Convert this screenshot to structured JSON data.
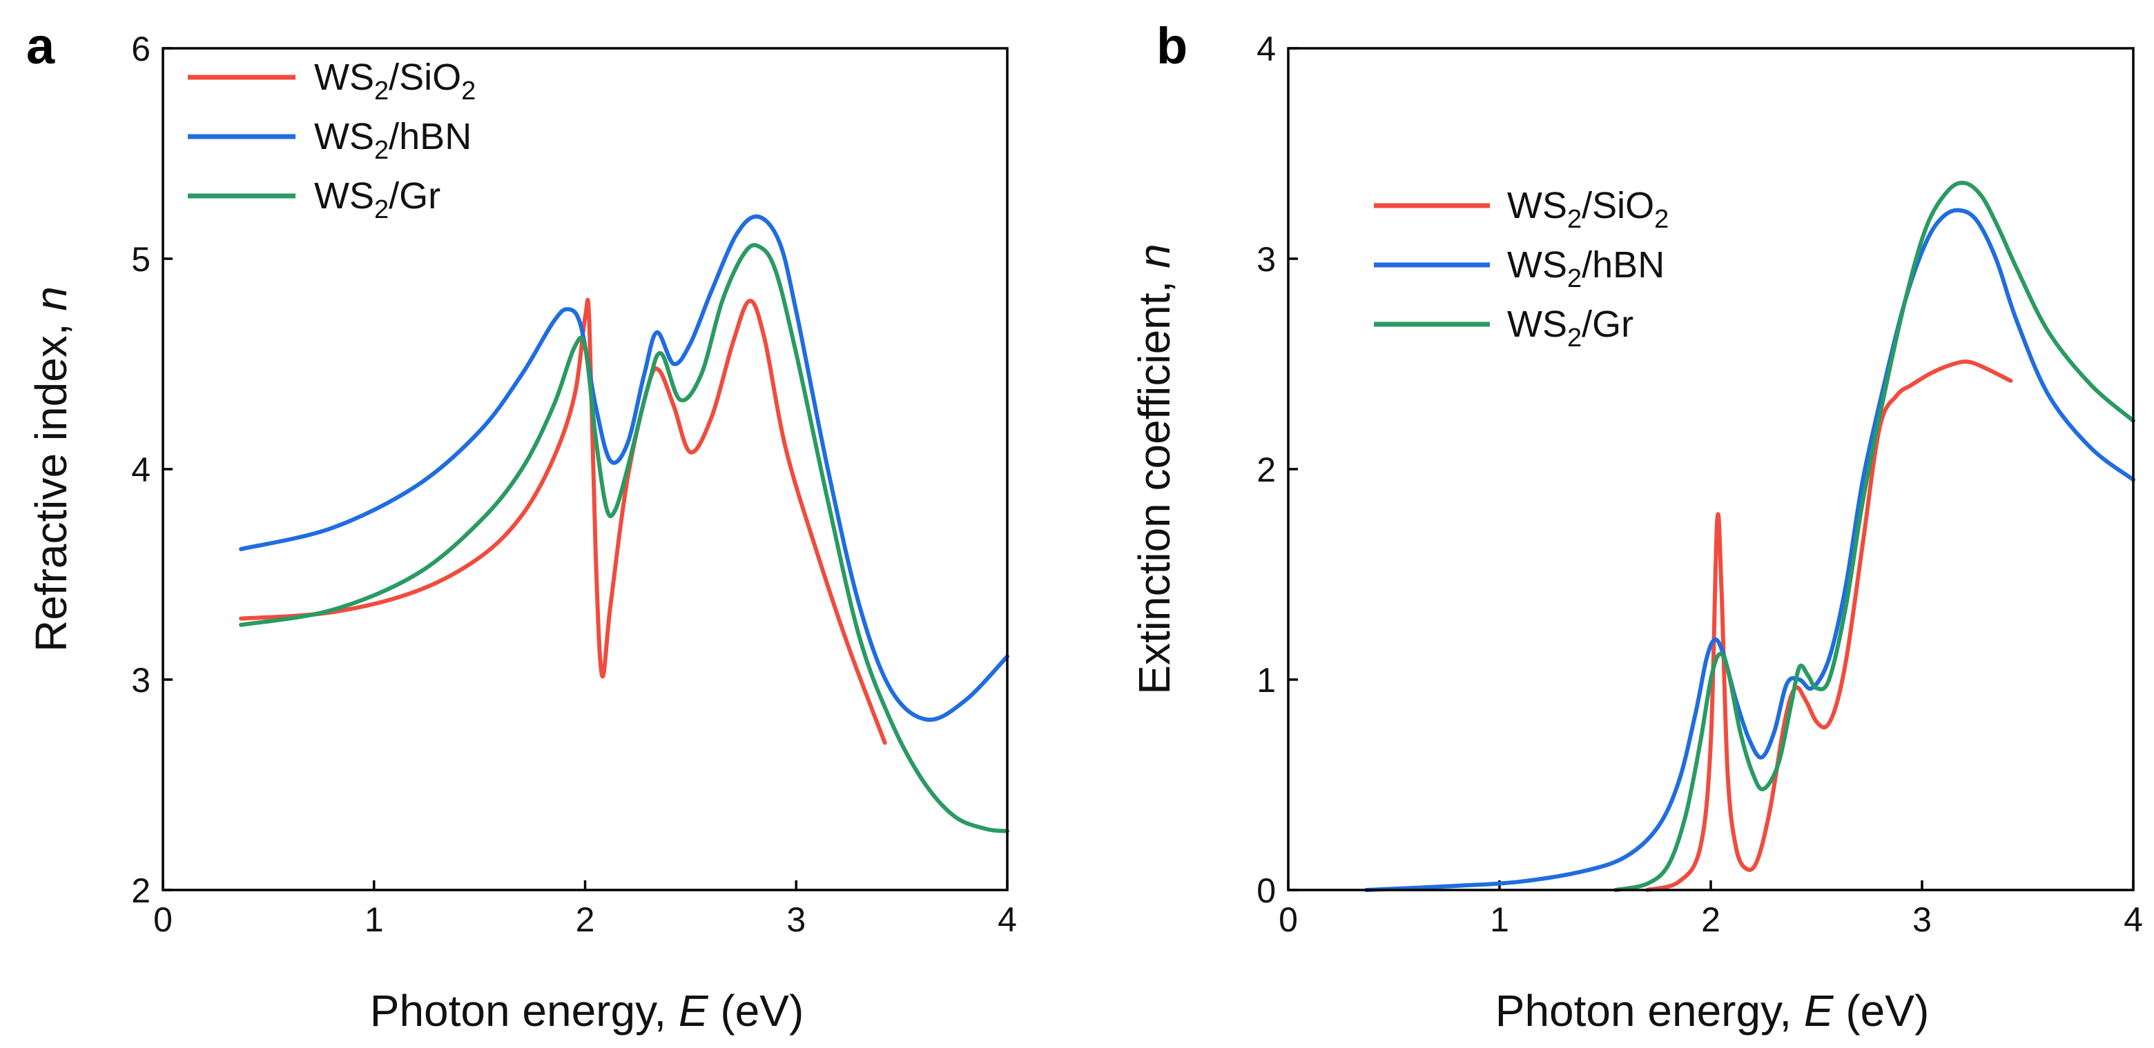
{
  "chart_data": [
    {
      "panel": "a",
      "type": "line",
      "xlabel_prefix": "Photon energy, ",
      "xlabel_var": "E",
      "xlabel_suffix": " (eV)",
      "ylabel_prefix": "Refractive index, ",
      "ylabel_var": "n",
      "xlim": [
        0,
        4
      ],
      "ylim": [
        2,
        6
      ],
      "xticks": [
        "0",
        "1",
        "2",
        "3",
        "4"
      ],
      "yticks": [
        "2",
        "3",
        "4",
        "5",
        "6"
      ],
      "legend_position": "top-left",
      "series": [
        {
          "name_base": "WS",
          "name_sub": "2",
          "name_rest": "/SiO",
          "name_sub2": "2",
          "color": "#f04c3e",
          "x": [
            0.37,
            0.8,
            1.2,
            1.5,
            1.7,
            1.85,
            1.95,
            2.0,
            2.02,
            2.05,
            2.08,
            2.12,
            2.2,
            2.3,
            2.35,
            2.42,
            2.5,
            2.6,
            2.7,
            2.78,
            2.85,
            2.95,
            3.1,
            3.25,
            3.42
          ],
          "y": [
            3.29,
            3.32,
            3.42,
            3.58,
            3.78,
            4.05,
            4.35,
            4.72,
            4.7,
            3.6,
            3.02,
            3.35,
            3.95,
            4.4,
            4.47,
            4.3,
            4.08,
            4.25,
            4.6,
            4.8,
            4.62,
            4.1,
            3.6,
            3.15,
            2.7
          ]
        },
        {
          "name_base": "WS",
          "name_sub": "2",
          "name_rest": "/hBN",
          "name_sub2": "",
          "color": "#1f6de0",
          "x": [
            0.37,
            0.8,
            1.2,
            1.5,
            1.7,
            1.85,
            1.92,
            1.98,
            2.05,
            2.12,
            2.2,
            2.28,
            2.34,
            2.42,
            2.5,
            2.6,
            2.72,
            2.82,
            2.92,
            3.0,
            3.15,
            3.3,
            3.45,
            3.62,
            3.8,
            4.0
          ],
          "y": [
            3.62,
            3.72,
            3.92,
            4.18,
            4.45,
            4.7,
            4.76,
            4.68,
            4.3,
            4.04,
            4.12,
            4.45,
            4.65,
            4.5,
            4.6,
            4.85,
            5.12,
            5.2,
            5.08,
            4.75,
            4.0,
            3.35,
            2.95,
            2.81,
            2.9,
            3.11
          ]
        },
        {
          "name_base": "WS",
          "name_sub": "2",
          "name_rest": "/Gr",
          "name_sub2": "",
          "color": "#2a9a63",
          "x": [
            0.37,
            0.8,
            1.2,
            1.5,
            1.7,
            1.85,
            1.95,
            2.0,
            2.05,
            2.1,
            2.14,
            2.2,
            2.3,
            2.36,
            2.45,
            2.55,
            2.65,
            2.75,
            2.82,
            2.9,
            3.0,
            3.15,
            3.3,
            3.45,
            3.6,
            3.75,
            3.9,
            4.0
          ],
          "y": [
            3.26,
            3.33,
            3.5,
            3.75,
            4.0,
            4.3,
            4.58,
            4.58,
            4.15,
            3.82,
            3.8,
            4.0,
            4.4,
            4.55,
            4.33,
            4.45,
            4.8,
            5.02,
            5.06,
            4.95,
            4.55,
            3.85,
            3.2,
            2.8,
            2.52,
            2.35,
            2.29,
            2.28
          ]
        }
      ]
    },
    {
      "panel": "b",
      "type": "line",
      "xlabel_prefix": "Photon energy, ",
      "xlabel_var": "E",
      "xlabel_suffix": " (eV)",
      "ylabel_prefix": "Extinction coefficient, ",
      "ylabel_var": "n",
      "xlim": [
        0,
        4
      ],
      "ylim": [
        0,
        4
      ],
      "xticks": [
        "0",
        "1",
        "2",
        "3",
        "4"
      ],
      "yticks": [
        "0",
        "1",
        "2",
        "3",
        "4"
      ],
      "legend_position": "upper-left",
      "series": [
        {
          "name_base": "WS",
          "name_sub": "2",
          "name_rest": "/SiO",
          "name_sub2": "2",
          "color": "#f04c3e",
          "x": [
            1.7,
            1.85,
            1.95,
            2.0,
            2.03,
            2.05,
            2.08,
            2.12,
            2.17,
            2.22,
            2.28,
            2.35,
            2.4,
            2.45,
            2.5,
            2.55,
            2.6,
            2.65,
            2.72,
            2.8,
            2.88,
            2.95,
            3.05,
            3.15,
            3.22,
            3.3,
            3.42
          ],
          "y": [
            0.0,
            0.04,
            0.2,
            0.7,
            1.75,
            1.45,
            0.55,
            0.2,
            0.1,
            0.14,
            0.38,
            0.8,
            0.96,
            0.9,
            0.8,
            0.78,
            0.9,
            1.15,
            1.65,
            2.2,
            2.35,
            2.4,
            2.46,
            2.5,
            2.51,
            2.48,
            2.42
          ]
        },
        {
          "name_base": "WS",
          "name_sub": "2",
          "name_rest": "/hBN",
          "name_sub2": "",
          "color": "#1f6de0",
          "x": [
            0.37,
            0.8,
            1.1,
            1.4,
            1.6,
            1.75,
            1.85,
            1.93,
            1.98,
            2.02,
            2.06,
            2.12,
            2.18,
            2.24,
            2.3,
            2.36,
            2.42,
            2.48,
            2.56,
            2.64,
            2.72,
            2.82,
            2.92,
            3.02,
            3.1,
            3.18,
            3.26,
            3.35,
            3.45,
            3.6,
            3.8,
            4.0
          ],
          "y": [
            0.0,
            0.02,
            0.04,
            0.09,
            0.16,
            0.3,
            0.52,
            0.85,
            1.1,
            1.19,
            1.12,
            0.9,
            0.72,
            0.63,
            0.75,
            0.98,
            1.0,
            0.96,
            1.1,
            1.45,
            1.95,
            2.4,
            2.8,
            3.08,
            3.2,
            3.23,
            3.18,
            3.0,
            2.7,
            2.35,
            2.1,
            1.95
          ]
        },
        {
          "name_base": "WS",
          "name_sub": "2",
          "name_rest": "/Gr",
          "name_sub2": "",
          "color": "#2a9a63",
          "x": [
            1.55,
            1.7,
            1.8,
            1.88,
            1.95,
            2.0,
            2.04,
            2.08,
            2.14,
            2.2,
            2.25,
            2.32,
            2.38,
            2.42,
            2.46,
            2.5,
            2.56,
            2.64,
            2.72,
            2.82,
            2.92,
            3.02,
            3.12,
            3.2,
            3.28,
            3.36,
            3.45,
            3.6,
            3.8,
            4.0
          ],
          "y": [
            0.0,
            0.03,
            0.12,
            0.35,
            0.7,
            1.0,
            1.12,
            1.05,
            0.75,
            0.55,
            0.48,
            0.6,
            0.88,
            1.06,
            1.02,
            0.96,
            1.0,
            1.35,
            1.85,
            2.35,
            2.8,
            3.15,
            3.32,
            3.36,
            3.3,
            3.15,
            2.95,
            2.65,
            2.4,
            2.23
          ]
        }
      ]
    }
  ]
}
